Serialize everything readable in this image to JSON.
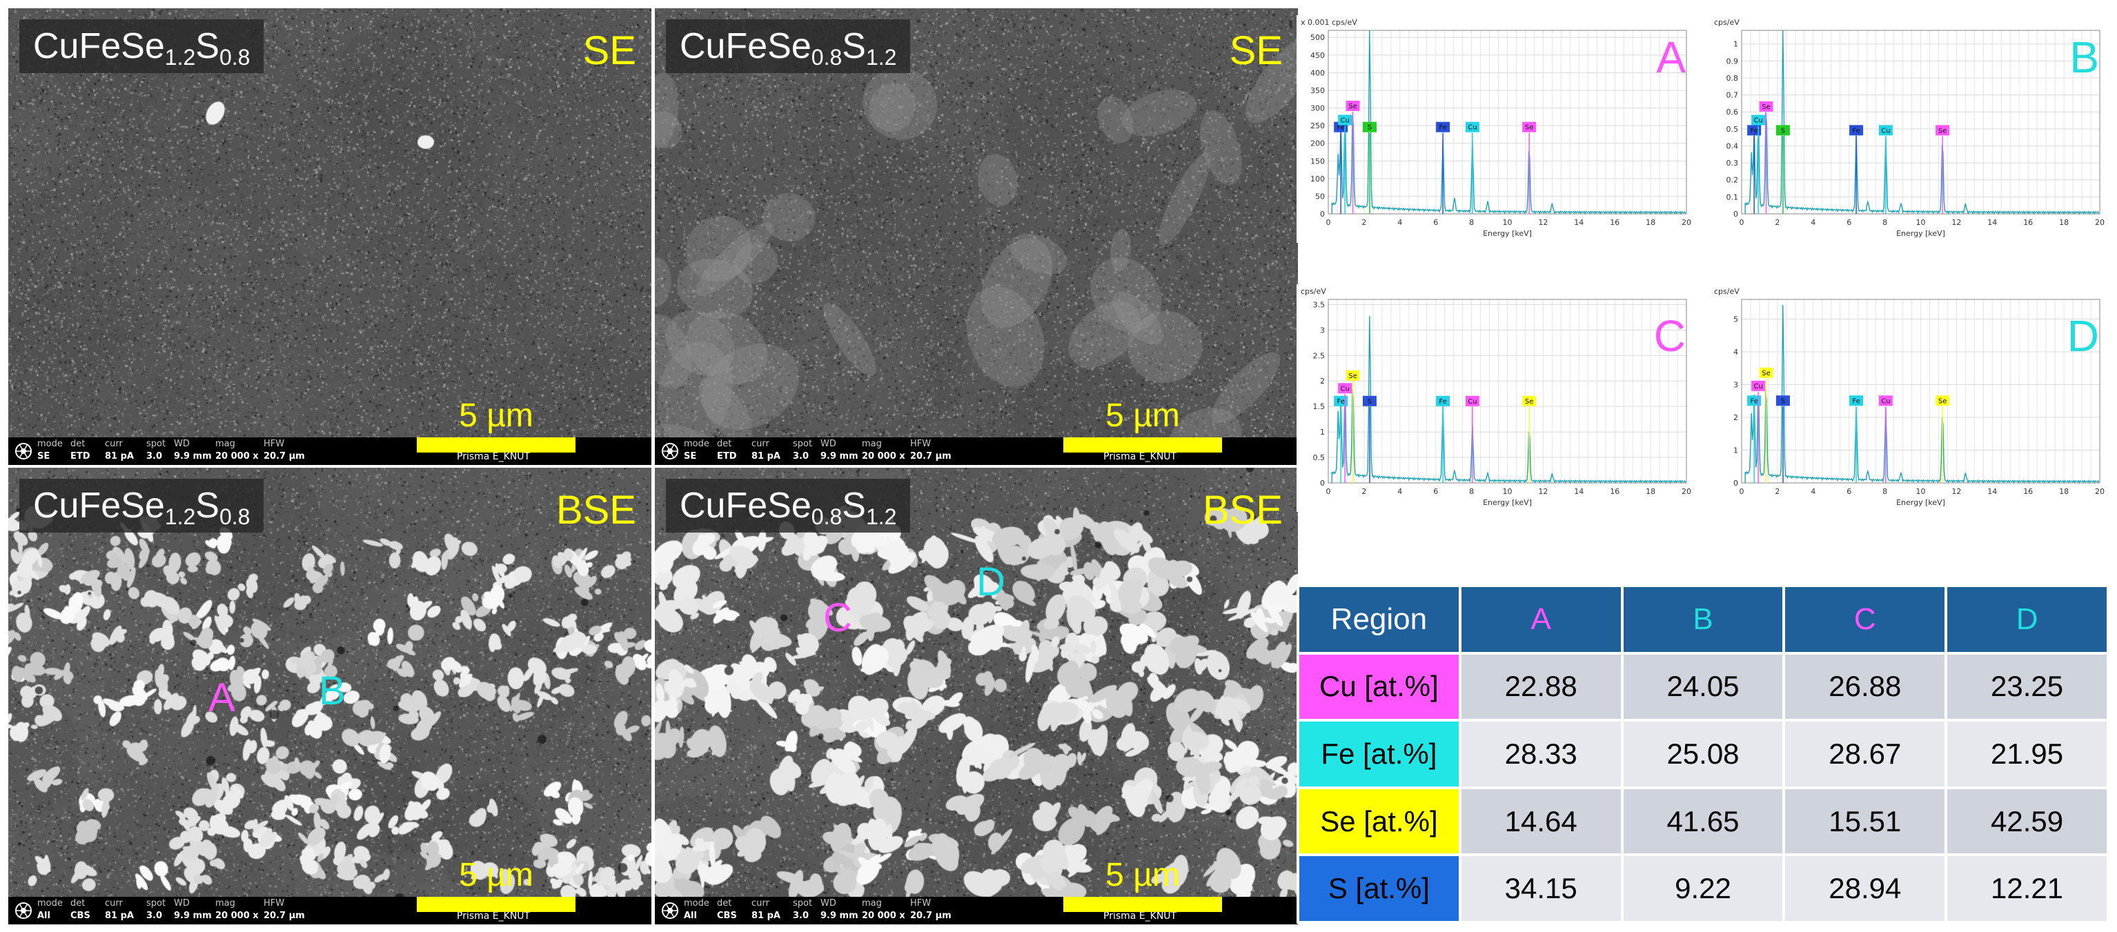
{
  "panels": [
    {
      "formula": {
        "base": "CuFeSe",
        "sub1": "1.2",
        "mid": "S",
        "sub2": "0.8"
      },
      "mode": "SE",
      "scalebar": "5 µm",
      "info": {
        "mode": "SE",
        "det": "ETD",
        "curr": "81 pA",
        "spot": "3.0",
        "wd": "9.9 mm",
        "mag": "20 000 x",
        "hfw": "20.7 µm",
        "instrument": "Prisma E_KNUT"
      }
    },
    {
      "formula": {
        "base": "CuFeSe",
        "sub1": "0.8",
        "mid": "S",
        "sub2": "1.2"
      },
      "mode": "SE",
      "scalebar": "5 µm",
      "info": {
        "mode": "SE",
        "det": "ETD",
        "curr": "81 pA",
        "spot": "3.0",
        "wd": "9.9 mm",
        "mag": "20 000 x",
        "hfw": "20.7 µm",
        "instrument": "Prisma E_KNUT"
      }
    },
    {
      "formula": {
        "base": "CuFeSe",
        "sub1": "1.2",
        "mid": "S",
        "sub2": "0.8"
      },
      "mode": "BSE",
      "scalebar": "5 µm",
      "regions": [
        {
          "label": "A",
          "color": "#ff55ff"
        },
        {
          "label": "B",
          "color": "#22dddd"
        }
      ],
      "info": {
        "mode": "All",
        "det": "CBS",
        "curr": "81 pA",
        "spot": "3.0",
        "wd": "9.9 mm",
        "mag": "20 000 x",
        "hfw": "20.7 µm",
        "instrument": "Prisma E_KNUT"
      }
    },
    {
      "formula": {
        "base": "CuFeSe",
        "sub1": "0.8",
        "mid": "S",
        "sub2": "1.2"
      },
      "mode": "BSE",
      "scalebar": "5 µm",
      "regions": [
        {
          "label": "C",
          "color": "#ff55ff"
        },
        {
          "label": "D",
          "color": "#22dddd"
        }
      ],
      "info": {
        "mode": "All",
        "det": "CBS",
        "curr": "81 pA",
        "spot": "3.0",
        "wd": "9.9 mm",
        "mag": "20 000 x",
        "hfw": "20.7 µm",
        "instrument": "Prisma E_KNUT"
      }
    }
  ],
  "info_headers": {
    "mode": "mode",
    "det": "det",
    "curr": "curr",
    "spot": "spot",
    "wd": "WD",
    "mag": "mag",
    "hfw": "HFW"
  },
  "chart_data": [
    {
      "type": "line",
      "title": "A",
      "title_color": "#ff55ff",
      "xlabel": "Energy [keV]",
      "ylabel": "x 0.001 cps/eV",
      "xlim": [
        0,
        20
      ],
      "ylim": [
        0,
        520
      ],
      "xticks": [
        0,
        2,
        4,
        6,
        8,
        10,
        12,
        14,
        16,
        18,
        20
      ],
      "yticks": [
        0,
        50,
        100,
        150,
        200,
        250,
        300,
        350,
        400,
        450,
        500
      ],
      "peaks": [
        {
          "x": 0.55,
          "y": 140
        },
        {
          "x": 0.7,
          "y": 230
        },
        {
          "x": 0.93,
          "y": 245
        },
        {
          "x": 1.37,
          "y": 290
        },
        {
          "x": 2.31,
          "y": 520
        },
        {
          "x": 6.4,
          "y": 200
        },
        {
          "x": 7.05,
          "y": 40
        },
        {
          "x": 8.05,
          "y": 200
        },
        {
          "x": 8.9,
          "y": 30
        },
        {
          "x": 11.22,
          "y": 195
        },
        {
          "x": 12.5,
          "y": 25
        }
      ],
      "markers": [
        {
          "label": "Fe",
          "x": 0.7,
          "y": 245,
          "bg": "#2a4fd8"
        },
        {
          "label": "Cu",
          "x": 0.93,
          "y": 265,
          "bg": "#22d4e8"
        },
        {
          "label": "Se",
          "x": 1.37,
          "y": 305,
          "bg": "#ff55ff"
        },
        {
          "label": "S",
          "x": 2.31,
          "y": 245,
          "bg": "#22cc22"
        },
        {
          "label": "Fe",
          "x": 6.4,
          "y": 245,
          "bg": "#2a4fd8"
        },
        {
          "label": "Cu",
          "x": 8.05,
          "y": 245,
          "bg": "#22d4e8"
        },
        {
          "label": "Se",
          "x": 11.22,
          "y": 245,
          "bg": "#ff55ff"
        }
      ]
    },
    {
      "type": "line",
      "title": "B",
      "title_color": "#22dddd",
      "xlabel": "Energy [keV]",
      "ylabel": "cps/eV",
      "xlim": [
        0,
        20
      ],
      "ylim": [
        0,
        1.08
      ],
      "xticks": [
        0,
        2,
        4,
        6,
        8,
        10,
        12,
        14,
        16,
        18,
        20
      ],
      "yticks": [
        0.0,
        0.1,
        0.2,
        0.3,
        0.4,
        0.5,
        0.6,
        0.7,
        0.8,
        0.9,
        1.0
      ],
      "peaks": [
        {
          "x": 0.55,
          "y": 0.3
        },
        {
          "x": 0.7,
          "y": 0.45
        },
        {
          "x": 0.93,
          "y": 0.48
        },
        {
          "x": 1.37,
          "y": 0.62
        },
        {
          "x": 2.31,
          "y": 1.08
        },
        {
          "x": 6.4,
          "y": 0.44
        },
        {
          "x": 7.05,
          "y": 0.06
        },
        {
          "x": 8.05,
          "y": 0.44
        },
        {
          "x": 8.9,
          "y": 0.05
        },
        {
          "x": 11.22,
          "y": 0.44
        },
        {
          "x": 12.5,
          "y": 0.05
        }
      ],
      "markers": [
        {
          "label": "Fe",
          "x": 0.7,
          "y": 0.49,
          "bg": "#2a4fd8"
        },
        {
          "label": "Cu",
          "x": 0.93,
          "y": 0.55,
          "bg": "#22d4e8"
        },
        {
          "label": "Se",
          "x": 1.37,
          "y": 0.63,
          "bg": "#ff55ff"
        },
        {
          "label": "S",
          "x": 2.31,
          "y": 0.49,
          "bg": "#22cc22"
        },
        {
          "label": "Fe",
          "x": 6.4,
          "y": 0.49,
          "bg": "#2a4fd8"
        },
        {
          "label": "Cu",
          "x": 8.05,
          "y": 0.49,
          "bg": "#22d4e8"
        },
        {
          "label": "Se",
          "x": 11.22,
          "y": 0.49,
          "bg": "#ff55ff"
        }
      ]
    },
    {
      "type": "line",
      "title": "C",
      "title_color": "#ff55ff",
      "xlabel": "Energy [keV]",
      "ylabel": "cps/eV",
      "xlim": [
        0,
        20
      ],
      "ylim": [
        0,
        3.6
      ],
      "xticks": [
        0,
        2,
        4,
        6,
        8,
        10,
        12,
        14,
        16,
        18,
        20
      ],
      "yticks": [
        0.0,
        0.5,
        1.0,
        1.5,
        2.0,
        2.5,
        3.0,
        3.5
      ],
      "peaks": [
        {
          "x": 0.55,
          "y": 1.2
        },
        {
          "x": 0.7,
          "y": 1.5
        },
        {
          "x": 0.93,
          "y": 1.6
        },
        {
          "x": 1.37,
          "y": 1.9
        },
        {
          "x": 2.31,
          "y": 3.25
        },
        {
          "x": 6.4,
          "y": 1.45
        },
        {
          "x": 7.05,
          "y": 0.2
        },
        {
          "x": 8.05,
          "y": 1.1
        },
        {
          "x": 8.9,
          "y": 0.15
        },
        {
          "x": 11.22,
          "y": 1.1
        },
        {
          "x": 12.5,
          "y": 0.15
        }
      ],
      "markers": [
        {
          "label": "Fe",
          "x": 0.7,
          "y": 1.6,
          "bg": "#22d4e8"
        },
        {
          "label": "Cu",
          "x": 0.93,
          "y": 1.85,
          "bg": "#ff55ff"
        },
        {
          "label": "Se",
          "x": 1.37,
          "y": 2.1,
          "bg": "#ffff22"
        },
        {
          "label": "S",
          "x": 2.31,
          "y": 1.6,
          "bg": "#2a4fd8"
        },
        {
          "label": "Fe",
          "x": 6.4,
          "y": 1.6,
          "bg": "#22d4e8"
        },
        {
          "label": "Cu",
          "x": 8.05,
          "y": 1.6,
          "bg": "#ff55ff"
        },
        {
          "label": "Se",
          "x": 11.22,
          "y": 1.6,
          "bg": "#ffff22"
        }
      ]
    },
    {
      "type": "line",
      "title": "D",
      "title_color": "#22dddd",
      "xlabel": "Energy [keV]",
      "ylabel": "cps/eV",
      "xlim": [
        0,
        20
      ],
      "ylim": [
        0,
        5.6
      ],
      "xticks": [
        0,
        2,
        4,
        6,
        8,
        10,
        12,
        14,
        16,
        18,
        20
      ],
      "yticks": [
        0,
        1,
        2,
        3,
        4,
        5
      ],
      "peaks": [
        {
          "x": 0.55,
          "y": 1.8
        },
        {
          "x": 0.7,
          "y": 2.4
        },
        {
          "x": 0.93,
          "y": 2.6
        },
        {
          "x": 1.37,
          "y": 2.9
        },
        {
          "x": 2.31,
          "y": 5.4
        },
        {
          "x": 6.4,
          "y": 2.2
        },
        {
          "x": 7.05,
          "y": 0.3
        },
        {
          "x": 8.05,
          "y": 2.2
        },
        {
          "x": 8.9,
          "y": 0.25
        },
        {
          "x": 11.22,
          "y": 2.2
        },
        {
          "x": 12.5,
          "y": 0.25
        }
      ],
      "markers": [
        {
          "label": "Fe",
          "x": 0.7,
          "y": 2.5,
          "bg": "#22d4e8"
        },
        {
          "label": "Cu",
          "x": 0.93,
          "y": 2.95,
          "bg": "#ff55ff"
        },
        {
          "label": "Se",
          "x": 1.37,
          "y": 3.35,
          "bg": "#ffff22"
        },
        {
          "label": "S",
          "x": 2.31,
          "y": 2.5,
          "bg": "#2a4fd8"
        },
        {
          "label": "Fe",
          "x": 6.4,
          "y": 2.5,
          "bg": "#22d4e8"
        },
        {
          "label": "Cu",
          "x": 8.05,
          "y": 2.5,
          "bg": "#ff55ff"
        },
        {
          "label": "Se",
          "x": 11.22,
          "y": 2.5,
          "bg": "#ffff22"
        }
      ]
    },
    {
      "type": "table",
      "header": {
        "label": "Region",
        "cols": [
          {
            "label": "A",
            "color": "#ff55ff"
          },
          {
            "label": "B",
            "color": "#22dddd"
          },
          {
            "label": "C",
            "color": "#ff55ff"
          },
          {
            "label": "D",
            "color": "#22dddd"
          }
        ]
      },
      "rows": [
        {
          "label": "Cu [at.%]",
          "color": "#ff55ff",
          "values": [
            "22.88",
            "24.05",
            "26.88",
            "23.25"
          ]
        },
        {
          "label": "Fe [at.%]",
          "color": "#22e6e6",
          "values": [
            "28.33",
            "25.08",
            "28.67",
            "21.95"
          ]
        },
        {
          "label": "Se [at.%]",
          "color": "#ffff00",
          "values": [
            "14.64",
            "41.65",
            "15.51",
            "42.59"
          ]
        },
        {
          "label": "S [at.%]",
          "color": "#1f6fe0",
          "values": [
            "34.15",
            "9.22",
            "28.94",
            "12.21"
          ]
        }
      ]
    }
  ]
}
